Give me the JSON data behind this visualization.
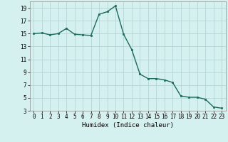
{
  "x": [
    0,
    1,
    2,
    3,
    4,
    5,
    6,
    7,
    8,
    9,
    10,
    11,
    12,
    13,
    14,
    15,
    16,
    17,
    18,
    19,
    20,
    21,
    22,
    23
  ],
  "y": [
    15,
    15.1,
    14.8,
    15.0,
    15.8,
    14.9,
    14.8,
    14.7,
    18.0,
    18.4,
    19.3,
    14.9,
    12.5,
    8.7,
    8.0,
    8.0,
    7.8,
    7.4,
    5.3,
    5.1,
    5.1,
    4.8,
    3.6,
    3.4
  ],
  "line_color": "#1a6b5a",
  "marker": "s",
  "markersize": 2.0,
  "linewidth": 1.0,
  "bg_color": "#d4f0ef",
  "grid_color": "#b0d0d0",
  "xlabel": "Humidex (Indice chaleur)",
  "xlim": [
    -0.5,
    23.5
  ],
  "ylim": [
    3,
    20
  ],
  "yticks": [
    3,
    5,
    7,
    9,
    11,
    13,
    15,
    17,
    19
  ],
  "xticks": [
    0,
    1,
    2,
    3,
    4,
    5,
    6,
    7,
    8,
    9,
    10,
    11,
    12,
    13,
    14,
    15,
    16,
    17,
    18,
    19,
    20,
    21,
    22,
    23
  ],
  "tick_fontsize": 5.5,
  "xlabel_fontsize": 6.5
}
